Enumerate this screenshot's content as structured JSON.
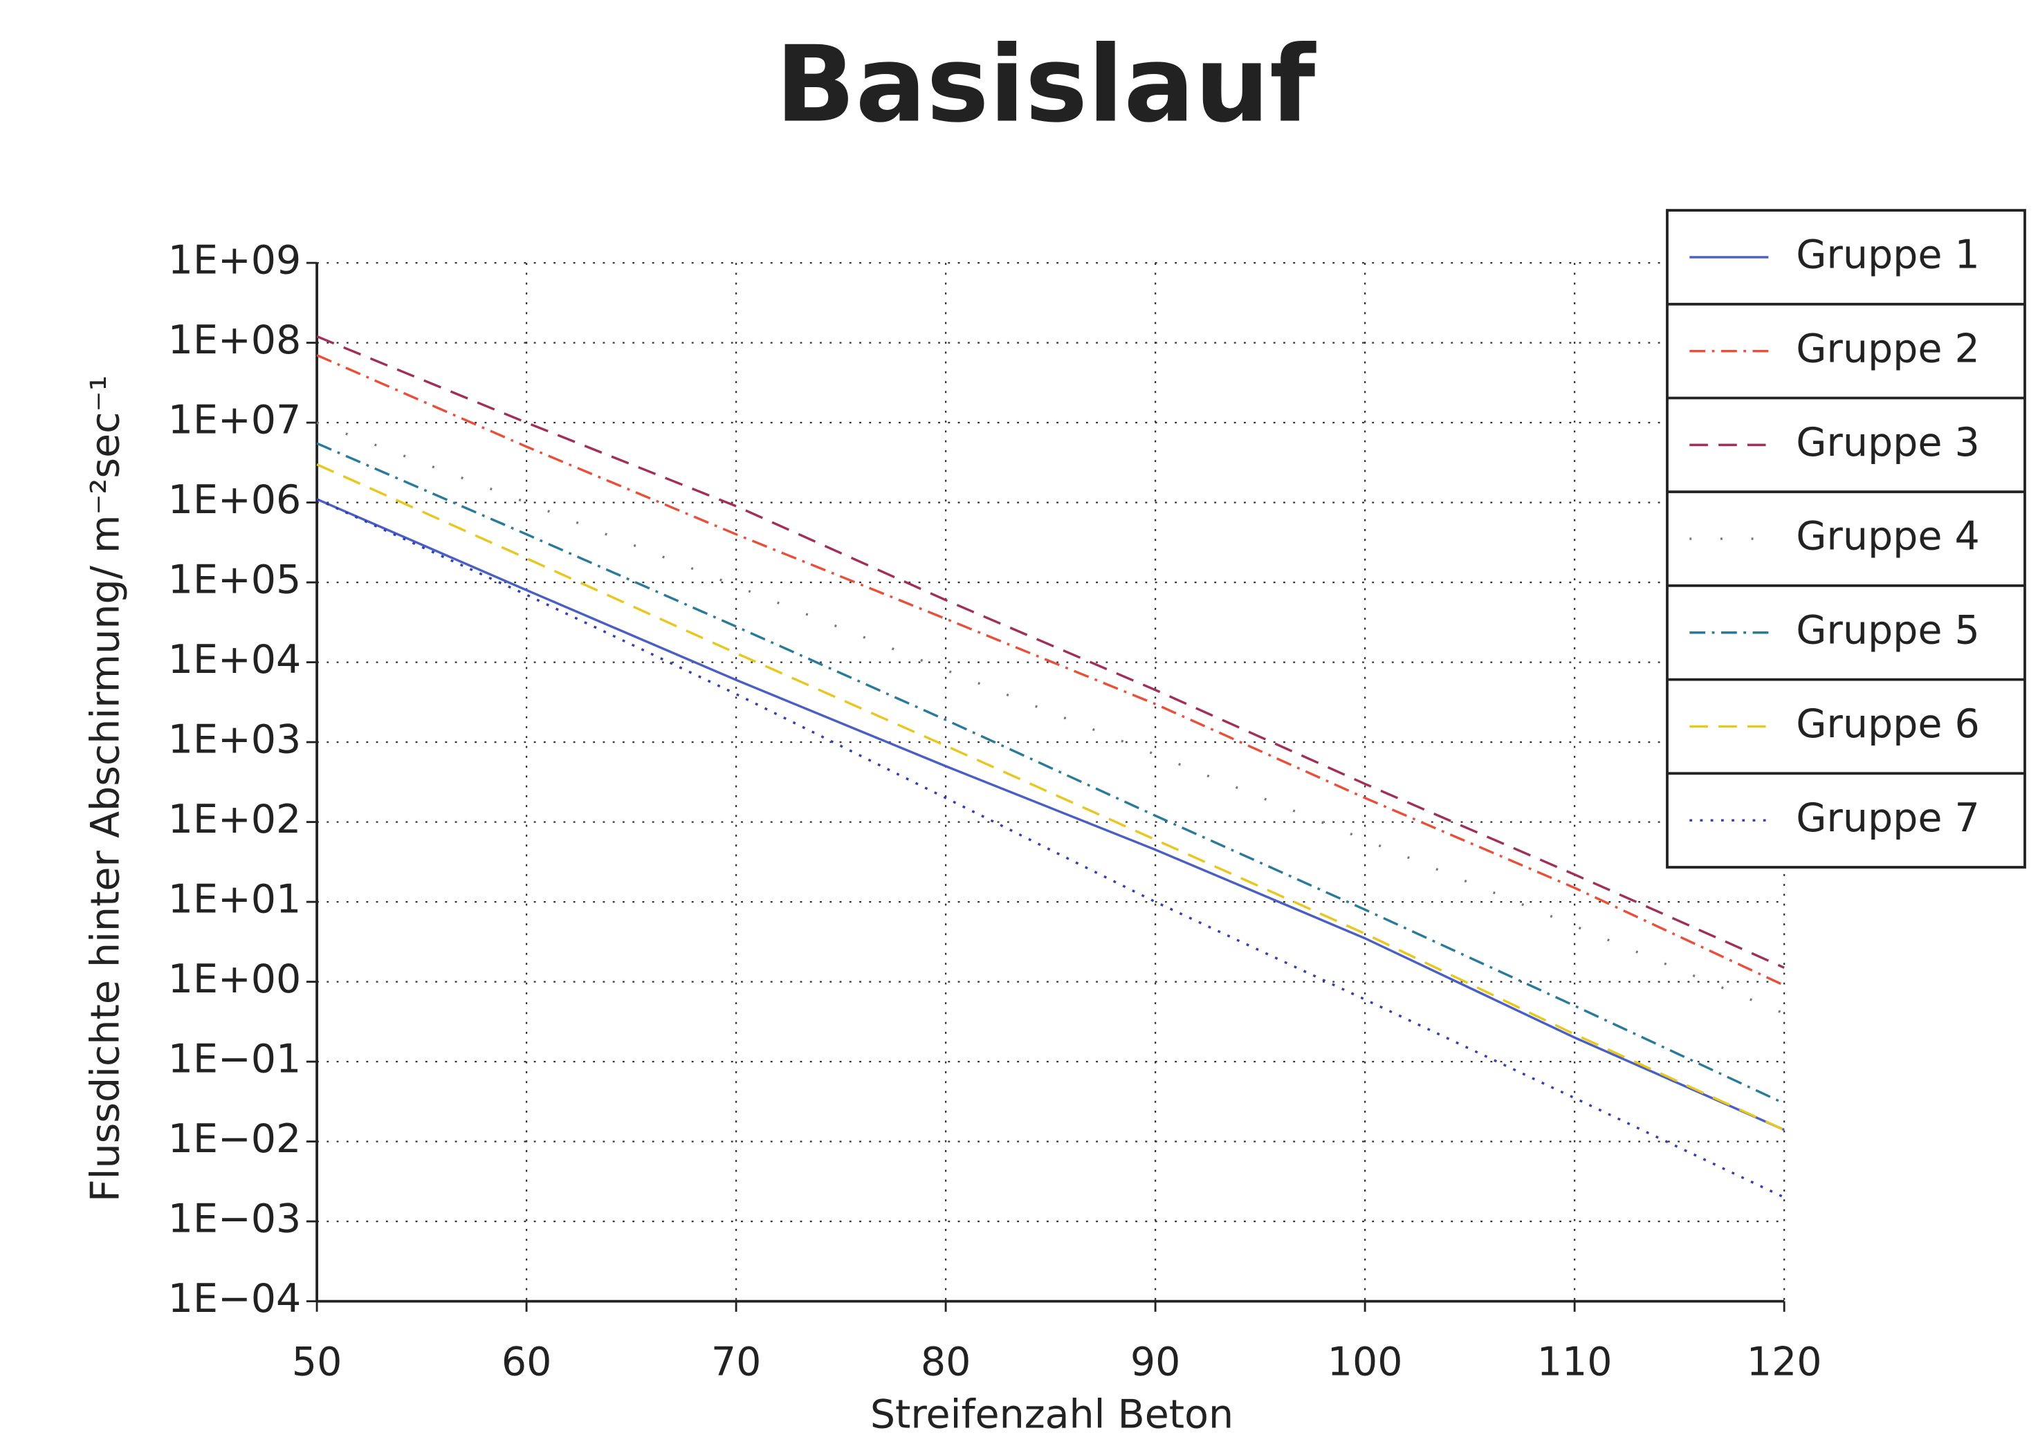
{
  "chart_data": {
    "type": "line",
    "title": "Basislauf",
    "xlabel": "Streifenzahl Beton",
    "ylabel": "Flussdichte hinter Abschirmung/ m⁻²sec⁻¹",
    "x": [
      50,
      60,
      70,
      80,
      90,
      100,
      110,
      120
    ],
    "xlim": [
      50,
      120
    ],
    "xticks": [
      50,
      60,
      70,
      80,
      90,
      100,
      110,
      120
    ],
    "ylim": [
      0.0001,
      1000000000
    ],
    "yscale": "log",
    "yticks": [
      {
        "value": 1000000000,
        "label": "1E+09"
      },
      {
        "value": 100000000,
        "label": "1E+08"
      },
      {
        "value": 10000000,
        "label": "1E+07"
      },
      {
        "value": 1000000,
        "label": "1E+06"
      },
      {
        "value": 100000,
        "label": "1E+05"
      },
      {
        "value": 10000,
        "label": "1E+04"
      },
      {
        "value": 1000,
        "label": "1E+03"
      },
      {
        "value": 100,
        "label": "1E+02"
      },
      {
        "value": 10,
        "label": "1E+01"
      },
      {
        "value": 1,
        "label": "1E+00"
      },
      {
        "value": 0.1,
        "label": "1E−01"
      },
      {
        "value": 0.01,
        "label": "1E−02"
      },
      {
        "value": 0.001,
        "label": "1E−03"
      },
      {
        "value": 0.0001,
        "label": "1E−04"
      }
    ],
    "grid": true,
    "legend": "upper right",
    "series": [
      {
        "name": "Gruppe 1",
        "color": "#4a5fc4",
        "style": "solid",
        "values": [
          1100000,
          80000,
          6000,
          500,
          45,
          3.5,
          0.2,
          0.014
        ]
      },
      {
        "name": "Gruppe 2",
        "color": "#e8503a",
        "style": "dashdot",
        "values": [
          70000000,
          5000000,
          400000,
          35000,
          3000,
          200,
          15,
          0.9
        ]
      },
      {
        "name": "Gruppe 3",
        "color": "#a0305a",
        "style": "dashed",
        "values": [
          120000000,
          10000000,
          900000,
          60000,
          4500,
          300,
          22,
          1.5
        ]
      },
      {
        "name": "Gruppe 4",
        "color": "#777777",
        "style": "sparse",
        "values": [
          10000000,
          1000000,
          90000,
          8000,
          700,
          60,
          5,
          0.4
        ]
      },
      {
        "name": "Gruppe 5",
        "color": "#2a7a9a",
        "style": "dashdot",
        "values": [
          5500000,
          400000,
          28000,
          1900,
          120,
          8,
          0.5,
          0.03
        ]
      },
      {
        "name": "Gruppe 6",
        "color": "#e8c820",
        "style": "dashed",
        "values": [
          3000000,
          200000,
          13000,
          900,
          60,
          4,
          0.22,
          0.014
        ]
      },
      {
        "name": "Gruppe 7",
        "color": "#3040b0",
        "style": "dotted",
        "values": [
          1100000,
          70000,
          4000,
          200,
          10,
          0.6,
          0.035,
          0.002
        ]
      }
    ]
  }
}
